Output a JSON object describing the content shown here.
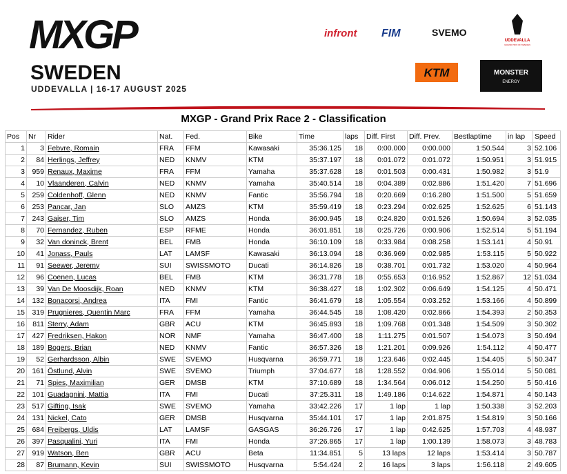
{
  "header": {
    "logo": "MXGP",
    "country": "SWEDEN",
    "event": "UDDEVALLA | 16-17 AUGUST 2025",
    "sponsors": {
      "infront": "infront",
      "fim": "FIM",
      "svemo": "SVEMO",
      "uddevalla": "UDDEVALLA",
      "uddevalla_sub": "GRAND PRIX OF SWEDEN",
      "ktm": "KTM",
      "monster": "MONSTER",
      "monster_sub": "ENERGY"
    }
  },
  "title": "MXGP - Grand Prix Race 2 - Classification",
  "table": {
    "columns": [
      "Pos",
      "Nr",
      "Rider",
      "Nat.",
      "Fed.",
      "Bike",
      "Time",
      "laps",
      "Diff. First",
      "Diff. Prev.",
      "Bestlaptime",
      "in lap",
      "Speed"
    ],
    "rows": [
      [
        "1",
        "3",
        "Febvre, Romain",
        "FRA",
        "FFM",
        "Kawasaki",
        "35:36.125",
        "18",
        "0:00.000",
        "0:00.000",
        "1:50.544",
        "3",
        "52.106"
      ],
      [
        "2",
        "84",
        "Herlings, Jeffrey",
        "NED",
        "KNMV",
        "KTM",
        "35:37.197",
        "18",
        "0:01.072",
        "0:01.072",
        "1:50.951",
        "3",
        "51.915"
      ],
      [
        "3",
        "959",
        "Renaux, Maxime",
        "FRA",
        "FFM",
        "Yamaha",
        "35:37.628",
        "18",
        "0:01.503",
        "0:00.431",
        "1:50.982",
        "3",
        "51.9"
      ],
      [
        "4",
        "10",
        "Vlaanderen, Calvin",
        "NED",
        "KNMV",
        "Yamaha",
        "35:40.514",
        "18",
        "0:04.389",
        "0:02.886",
        "1:51.420",
        "7",
        "51.696"
      ],
      [
        "5",
        "259",
        "Coldenhoff, Glenn",
        "NED",
        "KNMV",
        "Fantic",
        "35:56.794",
        "18",
        "0:20.669",
        "0:16.280",
        "1:51.500",
        "5",
        "51.659"
      ],
      [
        "6",
        "253",
        "Pancar, Jan",
        "SLO",
        "AMZS",
        "KTM",
        "35:59.419",
        "18",
        "0:23.294",
        "0:02.625",
        "1:52.625",
        "6",
        "51.143"
      ],
      [
        "7",
        "243",
        "Gajser, Tim",
        "SLO",
        "AMZS",
        "Honda",
        "36:00.945",
        "18",
        "0:24.820",
        "0:01.526",
        "1:50.694",
        "3",
        "52.035"
      ],
      [
        "8",
        "70",
        "Fernandez, Ruben",
        "ESP",
        "RFME",
        "Honda",
        "36:01.851",
        "18",
        "0:25.726",
        "0:00.906",
        "1:52.514",
        "5",
        "51.194"
      ],
      [
        "9",
        "32",
        "Van doninck, Brent",
        "BEL",
        "FMB",
        "Honda",
        "36:10.109",
        "18",
        "0:33.984",
        "0:08.258",
        "1:53.141",
        "4",
        "50.91"
      ],
      [
        "10",
        "41",
        "Jonass, Pauls",
        "LAT",
        "LAMSF",
        "Kawasaki",
        "36:13.094",
        "18",
        "0:36.969",
        "0:02.985",
        "1:53.115",
        "5",
        "50.922"
      ],
      [
        "11",
        "91",
        "Seewer, Jeremy",
        "SUI",
        "SWISSMOTO",
        "Ducati",
        "36:14.826",
        "18",
        "0:38.701",
        "0:01.732",
        "1:53.020",
        "4",
        "50.964"
      ],
      [
        "12",
        "96",
        "Coenen, Lucas",
        "BEL",
        "FMB",
        "KTM",
        "36:31.778",
        "18",
        "0:55.653",
        "0:16.952",
        "1:52.867",
        "12",
        "51.034"
      ],
      [
        "13",
        "39",
        "Van De Moosdijk, Roan",
        "NED",
        "KNMV",
        "KTM",
        "36:38.427",
        "18",
        "1:02.302",
        "0:06.649",
        "1:54.125",
        "4",
        "50.471"
      ],
      [
        "14",
        "132",
        "Bonacorsi, Andrea",
        "ITA",
        "FMI",
        "Fantic",
        "36:41.679",
        "18",
        "1:05.554",
        "0:03.252",
        "1:53.166",
        "4",
        "50.899"
      ],
      [
        "15",
        "319",
        "Prugnieres, Quentin Marc",
        "FRA",
        "FFM",
        "Yamaha",
        "36:44.545",
        "18",
        "1:08.420",
        "0:02.866",
        "1:54.393",
        "2",
        "50.353"
      ],
      [
        "16",
        "811",
        "Sterry, Adam",
        "GBR",
        "ACU",
        "KTM",
        "36:45.893",
        "18",
        "1:09.768",
        "0:01.348",
        "1:54.509",
        "3",
        "50.302"
      ],
      [
        "17",
        "427",
        "Fredriksen, Hakon",
        "NOR",
        "NMF",
        "Yamaha",
        "36:47.400",
        "18",
        "1:11.275",
        "0:01.507",
        "1:54.073",
        "3",
        "50.494"
      ],
      [
        "18",
        "189",
        "Bogers, Brian",
        "NED",
        "KNMV",
        "Fantic",
        "36:57.326",
        "18",
        "1:21.201",
        "0:09.926",
        "1:54.112",
        "4",
        "50.477"
      ],
      [
        "19",
        "52",
        "Gerhardsson, Albin",
        "SWE",
        "SVEMO",
        "Husqvarna",
        "36:59.771",
        "18",
        "1:23.646",
        "0:02.445",
        "1:54.405",
        "5",
        "50.347"
      ],
      [
        "20",
        "161",
        "Östlund, Alvin",
        "SWE",
        "SVEMO",
        "Triumph",
        "37:04.677",
        "18",
        "1:28.552",
        "0:04.906",
        "1:55.014",
        "5",
        "50.081"
      ],
      [
        "21",
        "71",
        "Spies, Maximilian",
        "GER",
        "DMSB",
        "KTM",
        "37:10.689",
        "18",
        "1:34.564",
        "0:06.012",
        "1:54.250",
        "5",
        "50.416"
      ],
      [
        "22",
        "101",
        "Guadagnini, Mattia",
        "ITA",
        "FMI",
        "Ducati",
        "37:25.311",
        "18",
        "1:49.186",
        "0:14.622",
        "1:54.871",
        "4",
        "50.143"
      ],
      [
        "23",
        "517",
        "Gifting, Isak",
        "SWE",
        "SVEMO",
        "Yamaha",
        "33:42.226",
        "17",
        "1 lap",
        "1 lap",
        "1:50.338",
        "3",
        "52.203"
      ],
      [
        "24",
        "131",
        "Nickel, Cato",
        "GER",
        "DMSB",
        "Husqvarna",
        "35:44.101",
        "17",
        "1 lap",
        "2:01.875",
        "1:54.819",
        "3",
        "50.166"
      ],
      [
        "25",
        "684",
        "Freibergs, Uldis",
        "LAT",
        "LAMSF",
        "GASGAS",
        "36:26.726",
        "17",
        "1 lap",
        "0:42.625",
        "1:57.703",
        "4",
        "48.937"
      ],
      [
        "26",
        "397",
        "Pasqualini, Yuri",
        "ITA",
        "FMI",
        "Honda",
        "37:26.865",
        "17",
        "1 lap",
        "1:00.139",
        "1:58.073",
        "3",
        "48.783"
      ],
      [
        "27",
        "919",
        "Watson, Ben",
        "GBR",
        "ACU",
        "Beta",
        "11:34.851",
        "5",
        "13 laps",
        "12 laps",
        "1:53.414",
        "3",
        "50.787"
      ],
      [
        "28",
        "87",
        "Brumann, Kevin",
        "SUI",
        "SWISSMOTO",
        "Husqvarna",
        "5:54.424",
        "2",
        "16 laps",
        "3 laps",
        "1:56.118",
        "2",
        "49.605"
      ]
    ]
  }
}
